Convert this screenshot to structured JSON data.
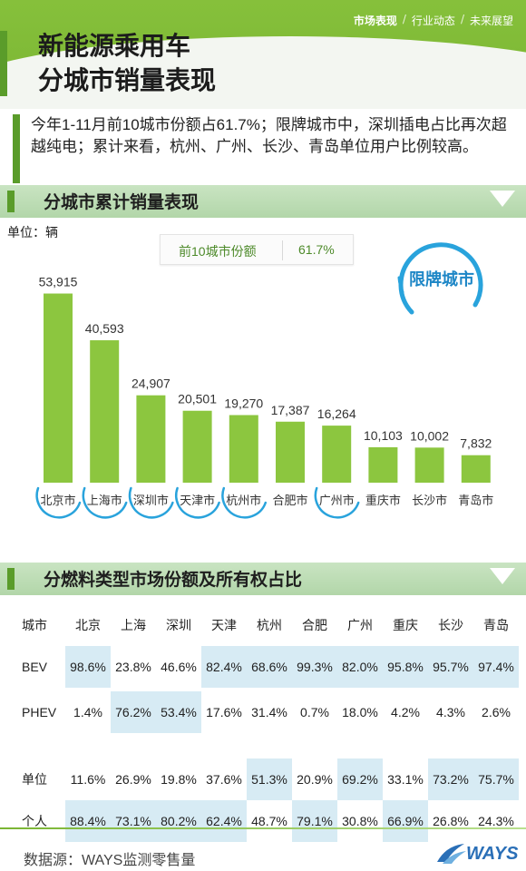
{
  "nav": {
    "items": [
      "市场表现",
      "行业动态",
      "未来展望"
    ],
    "separator": "/"
  },
  "title": {
    "line1": "新能源乘用车",
    "line2": "分城市销量表现"
  },
  "intro": "今年1-11月前10城市份额占61.7%；限牌城市中，深圳插电占比再次超越纯电；累计来看，杭州、广州、长沙、青岛单位用户比例较高。",
  "section1": {
    "title": "分城市累计销量表现",
    "unit": "单位：辆"
  },
  "top10_share": {
    "label": "前10城市份额",
    "value": "61.7%"
  },
  "legend_badge": "限牌城市",
  "chart_data": {
    "type": "bar",
    "title": "分城市累计销量表现",
    "ylabel": "单位：辆",
    "categories": [
      "北京市",
      "上海市",
      "深圳市",
      "天津市",
      "杭州市",
      "合肥市",
      "广州市",
      "重庆市",
      "长沙市",
      "青岛市"
    ],
    "values": [
      53915,
      40593,
      24907,
      20501,
      19270,
      17387,
      16264,
      10103,
      10002,
      7832
    ],
    "value_labels": [
      "53,915",
      "40,593",
      "24,907",
      "20,501",
      "19,270",
      "17,387",
      "16,264",
      "10,103",
      "10,002",
      "7,832"
    ],
    "restricted": [
      true,
      true,
      true,
      true,
      true,
      false,
      true,
      false,
      false,
      false
    ],
    "ylim": [
      0,
      60000
    ],
    "colors": {
      "bar": "#8cc63f",
      "restricted_ring": "#29a3dc"
    }
  },
  "section2": {
    "title": "分燃料类型市场份额及所有权占比"
  },
  "table": {
    "header": [
      "城市",
      "北京",
      "上海",
      "深圳",
      "天津",
      "杭州",
      "合肥",
      "广州",
      "重庆",
      "长沙",
      "青岛"
    ],
    "rows": [
      {
        "label": "BEV",
        "cells": [
          "98.6%",
          "23.8%",
          "46.6%",
          "82.4%",
          "68.6%",
          "99.3%",
          "82.0%",
          "95.8%",
          "95.7%",
          "97.4%"
        ],
        "highlight": [
          true,
          false,
          false,
          true,
          true,
          true,
          true,
          true,
          true,
          true
        ]
      },
      {
        "label": "PHEV",
        "cells": [
          "1.4%",
          "76.2%",
          "53.4%",
          "17.6%",
          "31.4%",
          "0.7%",
          "18.0%",
          "4.2%",
          "4.3%",
          "2.6%"
        ],
        "highlight": [
          false,
          true,
          true,
          false,
          false,
          false,
          false,
          false,
          false,
          false
        ]
      },
      {
        "label": "单位",
        "cells": [
          "11.6%",
          "26.9%",
          "19.8%",
          "37.6%",
          "51.3%",
          "20.9%",
          "69.2%",
          "33.1%",
          "73.2%",
          "75.7%"
        ],
        "highlight": [
          false,
          false,
          false,
          false,
          true,
          false,
          true,
          false,
          true,
          true
        ]
      },
      {
        "label": "个人",
        "cells": [
          "88.4%",
          "73.1%",
          "80.2%",
          "62.4%",
          "48.7%",
          "79.1%",
          "30.8%",
          "66.9%",
          "26.8%",
          "24.3%"
        ],
        "highlight": [
          true,
          true,
          true,
          true,
          false,
          true,
          false,
          true,
          false,
          false
        ]
      }
    ]
  },
  "footer": {
    "source": "数据源：WAYS监测零售量",
    "logo": "WAYS"
  },
  "colors": {
    "brand_green": "#7ab533",
    "dark_green": "#5a9c2a",
    "highlight_blue": "#d7ebf4",
    "ring_blue": "#29a3dc"
  }
}
